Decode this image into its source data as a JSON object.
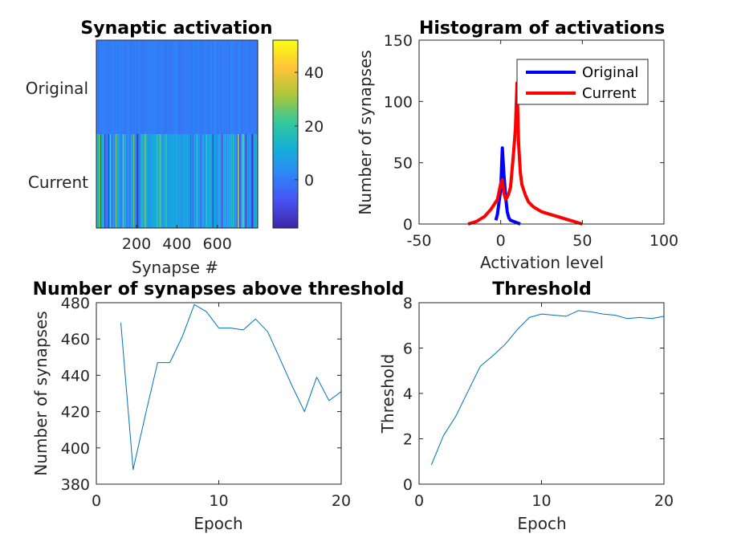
{
  "chart_data": [
    {
      "type": "heatmap",
      "title": "Synaptic activation",
      "xlabel": "Synapse #",
      "ylabel": "",
      "rows": [
        "Original",
        "Current"
      ],
      "xlim": [
        1,
        800
      ],
      "xticks": [
        200,
        400,
        600
      ],
      "colorbar": {
        "range": [
          -18,
          52
        ],
        "ticks": [
          0,
          20,
          40
        ],
        "colormap": "parula"
      },
      "row_typical_values": {
        "Original": 0,
        "Current": 8
      },
      "grid": false
    },
    {
      "type": "line",
      "title": "Histogram of activations",
      "xlabel": "Activation level",
      "ylabel": "Number of synapses",
      "xlim": [
        -50,
        100
      ],
      "ylim": [
        0,
        150
      ],
      "xticks": [
        -50,
        0,
        50,
        100
      ],
      "yticks": [
        0,
        50,
        100,
        150
      ],
      "legend": "top-right",
      "grid": false,
      "series": [
        {
          "name": "Original",
          "color": "#0000ff",
          "x": [
            -3,
            -2,
            -1,
            0,
            1,
            2,
            3,
            4,
            5,
            6,
            8,
            10,
            12
          ],
          "y": [
            3,
            8,
            18,
            28,
            62,
            40,
            22,
            10,
            5,
            3,
            2,
            1,
            0
          ]
        },
        {
          "name": "Current",
          "color": "#ff0000",
          "x": [
            -20,
            -15,
            -10,
            -6,
            -4,
            -2,
            0,
            1,
            2,
            3,
            4,
            5,
            6,
            7,
            8,
            9,
            10,
            11,
            12,
            13,
            15,
            17,
            20,
            25,
            30,
            35,
            40,
            45,
            50
          ],
          "y": [
            0,
            2,
            6,
            12,
            16,
            20,
            33,
            36,
            25,
            20,
            22,
            25,
            30,
            45,
            60,
            78,
            115,
            65,
            42,
            32,
            24,
            18,
            14,
            10,
            8,
            6,
            4,
            2,
            0
          ]
        }
      ]
    },
    {
      "type": "line",
      "title": "Number of synapses above threshold",
      "xlabel": "Epoch",
      "ylabel": "Number of synapses",
      "xlim": [
        0,
        20
      ],
      "ylim": [
        380,
        480
      ],
      "xticks": [
        0,
        10,
        20
      ],
      "yticks": [
        380,
        400,
        420,
        440,
        460,
        480
      ],
      "grid": false,
      "series": [
        {
          "color": "#0072bd",
          "x": [
            2,
            3,
            4,
            5,
            6,
            7,
            8,
            9,
            10,
            11,
            12,
            13,
            14,
            15,
            16,
            17,
            18,
            19,
            20
          ],
          "y": [
            469,
            388,
            418,
            447,
            447,
            461,
            479,
            475,
            466,
            466,
            465,
            471,
            464,
            449,
            434,
            420,
            439,
            426,
            431
          ]
        }
      ]
    },
    {
      "type": "line",
      "title": "Threshold",
      "xlabel": "Epoch",
      "ylabel": "Threshold",
      "xlim": [
        0,
        20
      ],
      "ylim": [
        0,
        8
      ],
      "xticks": [
        0,
        10,
        20
      ],
      "yticks": [
        0,
        2,
        4,
        6,
        8
      ],
      "grid": false,
      "series": [
        {
          "color": "#0072bd",
          "x": [
            1,
            2,
            3,
            4,
            5,
            6,
            7,
            8,
            9,
            10,
            11,
            12,
            13,
            14,
            15,
            16,
            17,
            18,
            19,
            20
          ],
          "y": [
            0.85,
            2.15,
            3.0,
            4.1,
            5.2,
            5.65,
            6.15,
            6.8,
            7.35,
            7.5,
            7.45,
            7.4,
            7.65,
            7.6,
            7.5,
            7.45,
            7.3,
            7.35,
            7.3,
            7.4
          ]
        }
      ]
    }
  ]
}
